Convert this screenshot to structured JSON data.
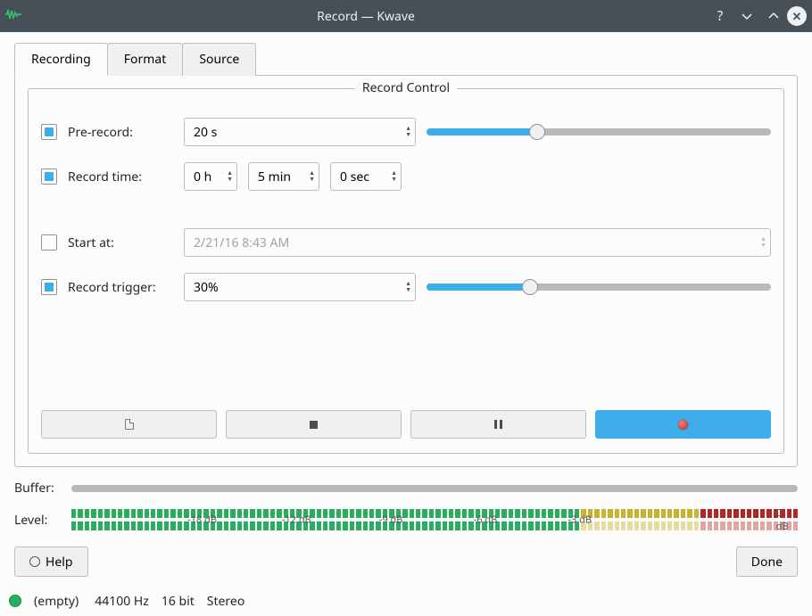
{
  "window": {
    "title": "Record — Kwave"
  },
  "tabs": {
    "recording": "Recording",
    "format": "Format",
    "source": "Source"
  },
  "group": {
    "title": "Record Control"
  },
  "prerecord": {
    "label": "Pre-record:",
    "checked": true,
    "value": "20 s",
    "slider_pct": 32
  },
  "recordtime": {
    "label": "Record time:",
    "checked": true,
    "hours": "0 h",
    "minutes": "5 min",
    "seconds": "0 sec"
  },
  "startat": {
    "label": "Start at:",
    "checked": false,
    "value": "2/21/16 8:43 AM"
  },
  "trigger": {
    "label": "Record trigger:",
    "checked": true,
    "value": "30%",
    "slider_pct": 30
  },
  "buffer": {
    "label": "Buffer:"
  },
  "level": {
    "label": "Level:",
    "ticks": [
      "-18 dB",
      "-12 dB",
      "-9 dB",
      "-6 dB",
      "-3 dB",
      "0 dB"
    ],
    "tick_positions_pct": [
      18,
      31,
      44,
      57,
      70,
      98
    ],
    "total_segments": 110,
    "yellow_from_pct": 70,
    "red_from_pct": 87,
    "top_active_pct": 100,
    "bot_active_pct": 70
  },
  "footer": {
    "help": "Help",
    "done": "Done"
  },
  "status": {
    "empty": "(empty)",
    "rate": "44100 Hz",
    "bits": "16 bit",
    "channels": "Stereo"
  },
  "colors": {
    "accent": "#3daee9",
    "green": "#27ae60",
    "green_dim": "#9fdcb2",
    "yellow": "#c9b22e",
    "yellow_dim": "#e6dd9d",
    "red": "#b22626",
    "red_dim": "#e0a6a6"
  }
}
